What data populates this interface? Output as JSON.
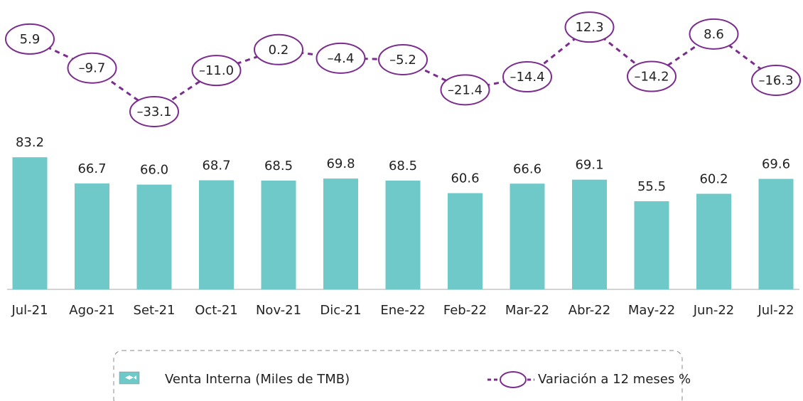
{
  "chart_data": {
    "type": "bar",
    "categories": [
      "Jul-21",
      "Ago-21",
      "Set-21",
      "Oct-21",
      "Nov-21",
      "Dic-21",
      "Ene-22",
      "Feb-22",
      "Mar-22",
      "Abr-22",
      "May-22",
      "Jun-22",
      "Jul-22"
    ],
    "series": [
      {
        "name": "Venta Interna (Miles de TMB)",
        "type": "bar",
        "color": "#70c9c9",
        "values": [
          83.2,
          66.7,
          66.0,
          68.7,
          68.5,
          69.8,
          68.5,
          60.6,
          66.6,
          69.1,
          55.5,
          60.2,
          69.6
        ],
        "value_labels": [
          "83.2",
          "66.7",
          "66.0",
          "68.7",
          "68.5",
          "69.8",
          "68.5",
          "60.6",
          "66.6",
          "69.1",
          "55.5",
          "60.2",
          "69.6"
        ]
      },
      {
        "name": "Variación a 12 meses %",
        "type": "line",
        "axis": "y2",
        "color": "#7b2d8e",
        "values": [
          5.9,
          -9.7,
          -33.1,
          -11.0,
          0.2,
          -4.4,
          -5.2,
          -21.4,
          -14.4,
          12.3,
          -14.2,
          8.6,
          -16.3
        ],
        "value_labels": [
          "5.9",
          "–9.7",
          "–33.1",
          "–11.0",
          "0.2",
          "–4.4",
          "–5.2",
          "–21.4",
          "–14.4",
          "12.3",
          "–14.2",
          "8.6",
          "–16.3"
        ]
      }
    ],
    "ylim": [
      0,
      90
    ],
    "y2lim": [
      -40,
      20
    ],
    "grid": false
  }
}
